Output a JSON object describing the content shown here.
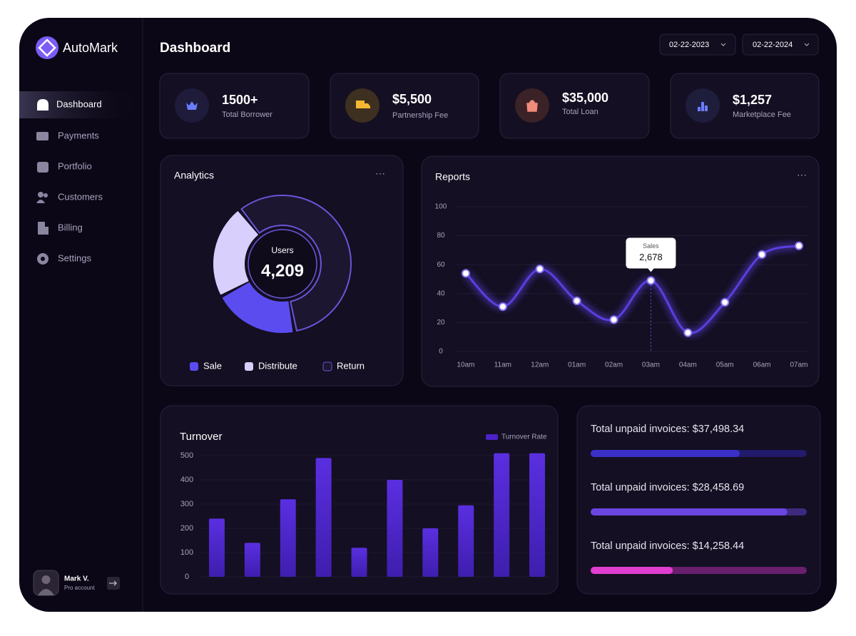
{
  "brand": "AutoMark",
  "nav": [
    "Dashboard",
    "Payments",
    "Portfolio",
    "Customers",
    "Billing",
    "Settings"
  ],
  "user": {
    "name": "Mark V.",
    "role": "Pro account"
  },
  "header": {
    "title": "Dashboard",
    "date_from": "02-22-2023",
    "date_to": "02-22-2024"
  },
  "stats": [
    {
      "value": "1500+",
      "label": "Total Borrower"
    },
    {
      "value": "$5,500",
      "label": "Partnership Fee"
    },
    {
      "value": "$35,000",
      "label": "Total Loan"
    },
    {
      "value": "$1,257",
      "label": "Marketplace Fee"
    }
  ],
  "analytics": {
    "type": "pie",
    "title": "Analytics",
    "center_label": "Users",
    "center_value": "4,209",
    "categories": [
      "Sale",
      "Distribute",
      "Return"
    ],
    "values": [
      20,
      22,
      58
    ],
    "colors": [
      "#5b4cf0",
      "#d8cffc",
      "#1c1630"
    ]
  },
  "reports": {
    "type": "line",
    "title": "Reports",
    "categories": [
      "10am",
      "11am",
      "12am",
      "01am",
      "02am",
      "03am",
      "04am",
      "05am",
      "06am",
      "07am"
    ],
    "series": [
      {
        "name": "Sales",
        "color": "#5a3fe0",
        "values": [
          54,
          31,
          57,
          35,
          22,
          49,
          13,
          34,
          67,
          73
        ]
      }
    ],
    "ylim": [
      0,
      100
    ],
    "yticks": [
      0,
      20,
      40,
      60,
      80,
      100
    ],
    "grid": true,
    "tooltip": {
      "label": "Sales",
      "value": "2,678"
    }
  },
  "turnover": {
    "type": "bar",
    "title": "Turnover",
    "categories": [
      null,
      null,
      null,
      null,
      null,
      null,
      null,
      null,
      null,
      null
    ],
    "series": [
      {
        "name": "Turnover Rate",
        "color": "#4b22c8",
        "values": [
          240,
          140,
          320,
          490,
          120,
          400,
          200,
          295,
          510,
          510
        ]
      }
    ],
    "ylim": [
      0,
      520
    ],
    "yticks": [
      0,
      100,
      200,
      300,
      400,
      500
    ],
    "grid": true
  },
  "invoices": [
    {
      "label": "Total unpaid invoices: $37,498.34",
      "progress": 69,
      "color": "#3b2fc8",
      "track": "#221a6a"
    },
    {
      "label": "Total unpaid invoices: $28,458.69",
      "progress": 91,
      "color": "#6a45e0",
      "track": "#3b2a80"
    },
    {
      "label": "Total unpaid invoices: $14,258.44",
      "progress": 38,
      "color": "#e03ed0",
      "track": "#6a1f6e"
    }
  ]
}
